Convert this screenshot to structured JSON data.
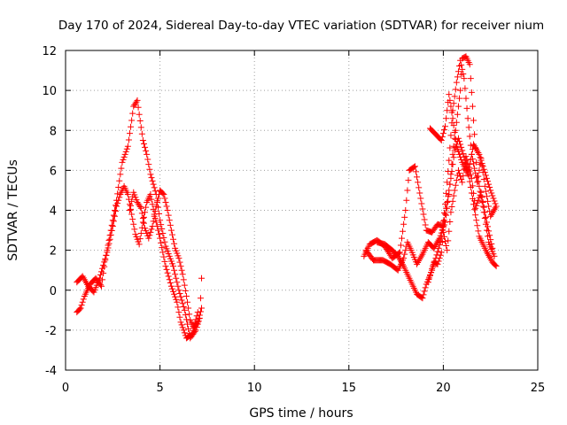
{
  "chart_data": {
    "type": "scatter",
    "title": "Day 170 of 2024, Sidereal Day-to-day VTEC variation (SDTVAR) for receiver nium",
    "xlabel": "GPS time / hours",
    "ylabel": "SDTVAR / TECUs",
    "xlim": [
      0,
      25
    ],
    "ylim": [
      -4,
      12
    ],
    "xticks": [
      0,
      5,
      10,
      15,
      20,
      25
    ],
    "yticks": [
      -4,
      -2,
      0,
      2,
      4,
      6,
      8,
      10,
      12
    ],
    "xtick_labels": [
      "0",
      "5",
      "10",
      "15",
      "20",
      "25"
    ],
    "ytick_labels": [
      "-4",
      "-2",
      "0",
      "2",
      "4",
      "6",
      "8",
      "10",
      "12"
    ],
    "grid": true,
    "marker": "+",
    "color": "#ff0000",
    "series": [
      {
        "name": "SDTVAR",
        "tracks": [
          [
            [
              0.6,
              -1.1
            ],
            [
              0.8,
              -0.9
            ],
            [
              1.0,
              -0.3
            ],
            [
              1.3,
              0.3
            ],
            [
              1.6,
              0.6
            ],
            [
              1.9,
              0.2
            ],
            [
              2.1,
              1.5
            ],
            [
              2.4,
              3.0
            ],
            [
              2.7,
              4.5
            ],
            [
              2.9,
              5.8
            ],
            [
              3.0,
              6.4
            ],
            [
              3.3,
              7.2
            ],
            [
              3.5,
              8.5
            ],
            [
              3.6,
              9.2
            ],
            [
              3.8,
              9.5
            ],
            [
              3.9,
              8.8
            ],
            [
              4.1,
              7.5
            ],
            [
              4.3,
              6.8
            ],
            [
              4.5,
              5.8
            ],
            [
              4.8,
              4.8
            ],
            [
              5.0,
              3.5
            ],
            [
              5.3,
              2.2
            ],
            [
              5.7,
              1.2
            ],
            [
              6.0,
              0.0
            ],
            [
              6.3,
              -1.0
            ],
            [
              6.6,
              -2.4
            ],
            [
              6.9,
              -2.0
            ],
            [
              7.1,
              -1.4
            ],
            [
              7.2,
              0.6
            ]
          ],
          [
            [
              0.6,
              0.4
            ],
            [
              0.9,
              0.7
            ],
            [
              1.2,
              0.2
            ],
            [
              1.5,
              -0.1
            ],
            [
              1.8,
              0.6
            ],
            [
              2.2,
              1.9
            ],
            [
              2.5,
              3.2
            ],
            [
              2.7,
              4.2
            ],
            [
              2.9,
              4.8
            ],
            [
              3.1,
              5.2
            ],
            [
              3.3,
              4.8
            ],
            [
              3.5,
              3.8
            ],
            [
              3.7,
              2.8
            ],
            [
              3.9,
              2.3
            ],
            [
              4.1,
              3.4
            ],
            [
              4.3,
              4.4
            ],
            [
              4.5,
              4.8
            ],
            [
              4.7,
              3.8
            ],
            [
              5.0,
              2.6
            ],
            [
              5.3,
              1.2
            ],
            [
              5.6,
              0.2
            ],
            [
              5.9,
              -0.6
            ],
            [
              6.1,
              -1.6
            ],
            [
              6.4,
              -2.4
            ],
            [
              6.7,
              -2.2
            ],
            [
              7.0,
              -1.1
            ]
          ],
          [
            [
              3.4,
              4.0
            ],
            [
              3.6,
              4.9
            ],
            [
              3.8,
              4.4
            ],
            [
              4.0,
              4.1
            ],
            [
              4.2,
              3.1
            ],
            [
              4.4,
              2.6
            ],
            [
              4.6,
              3.2
            ],
            [
              4.8,
              4.2
            ],
            [
              5.0,
              5.0
            ],
            [
              5.2,
              4.8
            ],
            [
              5.4,
              4.0
            ],
            [
              5.6,
              3.0
            ],
            [
              5.8,
              2.1
            ],
            [
              6.0,
              1.6
            ],
            [
              6.2,
              0.8
            ],
            [
              6.4,
              -0.3
            ],
            [
              6.6,
              -1.5
            ],
            [
              6.8,
              -1.9
            ],
            [
              7.0,
              -1.6
            ],
            [
              7.2,
              -0.9
            ]
          ],
          [
            [
              15.8,
              1.7
            ],
            [
              16.1,
              2.3
            ],
            [
              16.5,
              2.5
            ],
            [
              16.9,
              2.2
            ],
            [
              17.3,
              1.6
            ],
            [
              17.7,
              1.9
            ],
            [
              18.0,
              4.0
            ],
            [
              18.2,
              6.0
            ],
            [
              18.5,
              6.2
            ],
            [
              18.8,
              4.6
            ],
            [
              19.1,
              3.0
            ],
            [
              19.4,
              2.9
            ],
            [
              19.7,
              3.3
            ],
            [
              20.0,
              3.2
            ],
            [
              20.4,
              5.6
            ],
            [
              20.6,
              7.0
            ],
            [
              20.8,
              7.6
            ],
            [
              21.0,
              7.0
            ],
            [
              21.3,
              6.0
            ],
            [
              21.6,
              4.3
            ],
            [
              21.9,
              2.7
            ],
            [
              22.3,
              1.9
            ],
            [
              22.6,
              1.4
            ],
            [
              22.8,
              1.2
            ]
          ],
          [
            [
              15.9,
              2.0
            ],
            [
              16.3,
              1.5
            ],
            [
              16.8,
              1.5
            ],
            [
              17.2,
              1.3
            ],
            [
              17.6,
              1.0
            ],
            [
              17.9,
              1.6
            ],
            [
              18.1,
              2.4
            ],
            [
              18.3,
              2.0
            ],
            [
              18.6,
              1.3
            ],
            [
              18.9,
              1.8
            ],
            [
              19.2,
              2.4
            ],
            [
              19.5,
              2.1
            ],
            [
              19.8,
              2.6
            ],
            [
              20.1,
              3.4
            ],
            [
              20.3,
              4.8
            ],
            [
              20.5,
              6.8
            ],
            [
              20.7,
              8.4
            ],
            [
              20.9,
              10.0
            ],
            [
              21.0,
              11.6
            ],
            [
              21.2,
              11.7
            ],
            [
              21.4,
              11.3
            ],
            [
              21.6,
              8.5
            ],
            [
              21.8,
              5.7
            ],
            [
              22.1,
              4.2
            ],
            [
              22.4,
              2.4
            ],
            [
              22.7,
              1.7
            ]
          ],
          [
            [
              16.5,
              2.4
            ],
            [
              16.9,
              2.3
            ],
            [
              17.3,
              2.0
            ],
            [
              17.6,
              1.7
            ],
            [
              17.9,
              1.2
            ],
            [
              18.3,
              0.4
            ],
            [
              18.6,
              -0.2
            ],
            [
              18.9,
              -0.4
            ],
            [
              19.1,
              0.3
            ],
            [
              19.4,
              1.0
            ],
            [
              19.6,
              1.6
            ],
            [
              19.9,
              2.6
            ],
            [
              20.1,
              4.3
            ],
            [
              20.3,
              6.5
            ],
            [
              20.5,
              9.0
            ],
            [
              20.7,
              10.4
            ],
            [
              20.9,
              11.5
            ],
            [
              21.1,
              10.6
            ],
            [
              21.3,
              8.6
            ],
            [
              21.5,
              6.8
            ],
            [
              21.8,
              5.4
            ],
            [
              22.0,
              6.6
            ],
            [
              22.2,
              5.2
            ],
            [
              22.5,
              3.7
            ],
            [
              22.8,
              4.2
            ]
          ],
          [
            [
              19.3,
              8.1
            ],
            [
              19.6,
              7.8
            ],
            [
              19.9,
              7.5
            ],
            [
              20.1,
              8.2
            ],
            [
              20.3,
              9.8
            ],
            [
              20.5,
              8.6
            ],
            [
              20.7,
              7.2
            ],
            [
              21.0,
              6.4
            ],
            [
              21.3,
              5.8
            ],
            [
              21.6,
              7.3
            ],
            [
              21.9,
              6.8
            ],
            [
              22.2,
              5.9
            ],
            [
              22.5,
              5.0
            ],
            [
              22.8,
              4.2
            ]
          ],
          [
            [
              19.2,
              0.4
            ],
            [
              19.5,
              1.4
            ],
            [
              19.7,
              1.3
            ],
            [
              19.9,
              1.9
            ],
            [
              20.0,
              2.9
            ],
            [
              20.2,
              2.0
            ],
            [
              20.4,
              3.9
            ],
            [
              20.6,
              5.0
            ],
            [
              20.8,
              6.0
            ],
            [
              21.0,
              5.4
            ],
            [
              21.2,
              6.7
            ],
            [
              21.5,
              5.6
            ],
            [
              21.7,
              4.1
            ],
            [
              22.0,
              4.9
            ],
            [
              22.3,
              3.4
            ],
            [
              22.6,
              2.1
            ]
          ]
        ]
      }
    ]
  }
}
